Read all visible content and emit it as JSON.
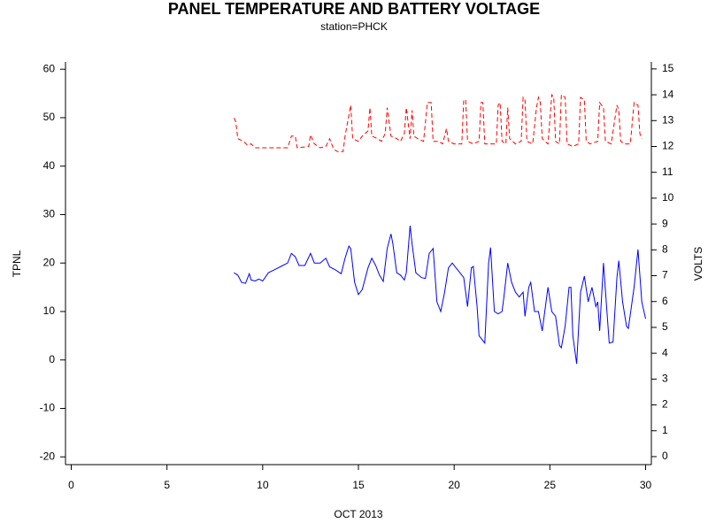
{
  "chart_data": {
    "type": "line",
    "title": "PANEL TEMPERATURE AND BATTERY VOLTAGE",
    "subtitle": "station=PHCK",
    "xlabel": "OCT 2013",
    "ylabel": "TPNL",
    "y2label": "VOLTS",
    "xlim": [
      -0.3,
      30.3
    ],
    "xticks": [
      0,
      5,
      10,
      15,
      20,
      25,
      30
    ],
    "ylim": [
      -21.6,
      61.5
    ],
    "yticks": [
      -20,
      -10,
      0,
      10,
      20,
      30,
      40,
      50,
      60
    ],
    "y2lim": [
      -0.31,
      15.27
    ],
    "y2ticks": [
      0,
      1,
      2,
      3,
      4,
      5,
      6,
      7,
      8,
      9,
      10,
      11,
      12,
      13,
      14,
      15
    ],
    "series": [
      {
        "name": "TPNL",
        "color": "#0000ff",
        "line_style": "solid",
        "x": [
          8.5,
          8.7,
          8.9,
          9.1,
          9.3,
          9.4,
          9.6,
          9.8,
          10.0,
          10.3,
          10.6,
          11.0,
          11.3,
          11.5,
          11.7,
          11.9,
          12.2,
          12.5,
          12.7,
          13.0,
          13.3,
          13.5,
          13.8,
          14.1,
          14.3,
          14.5,
          14.6,
          14.8,
          15.0,
          15.2,
          15.5,
          15.7,
          15.9,
          16.1,
          16.3,
          16.5,
          16.7,
          16.8,
          17.0,
          17.2,
          17.4,
          17.5,
          17.7,
          17.8,
          18.0,
          18.3,
          18.5,
          18.7,
          18.9,
          19.1,
          19.3,
          19.5,
          19.7,
          19.9,
          20.1,
          20.3,
          20.5,
          20.7,
          20.9,
          21.0,
          21.2,
          21.3,
          21.6,
          21.8,
          21.9,
          22.1,
          22.3,
          22.5,
          22.6,
          22.8,
          23.0,
          23.2,
          23.4,
          23.6,
          23.7,
          23.9,
          24.0,
          24.2,
          24.4,
          24.6,
          24.8,
          24.9,
          25.1,
          25.3,
          25.5,
          25.6,
          25.8,
          26.0,
          26.1,
          26.2,
          26.4,
          26.6,
          26.8,
          27.0,
          27.2,
          27.4,
          27.5,
          27.6,
          27.8,
          28.0,
          28.1,
          28.3,
          28.5,
          28.6,
          28.8,
          29.0,
          29.1,
          29.4,
          29.6,
          29.8,
          30.0
        ],
        "values": [
          18,
          17.5,
          16,
          15.8,
          17.8,
          16.5,
          16.3,
          16.7,
          16.3,
          18,
          18.6,
          19.4,
          20,
          22,
          21.3,
          19.5,
          19.5,
          22,
          20,
          20,
          21,
          19.2,
          18.6,
          17.8,
          21,
          23.5,
          23,
          16,
          13.5,
          14.5,
          19,
          21,
          19.5,
          17.5,
          16.2,
          23,
          26,
          24,
          18,
          17.5,
          16.5,
          18,
          27.7,
          24,
          18,
          17,
          16.8,
          22,
          23,
          12,
          10,
          14,
          19,
          20,
          19,
          18,
          17,
          11,
          19,
          19.3,
          11,
          5,
          3.5,
          20,
          23.2,
          10,
          9.5,
          10,
          13,
          20,
          16,
          14,
          13,
          14,
          9,
          15,
          16,
          10,
          10,
          6,
          12,
          15,
          10,
          9,
          3,
          2.5,
          7,
          15,
          15,
          5,
          -0.8,
          14,
          17.3,
          12,
          15,
          11,
          12,
          6,
          20,
          9,
          3.5,
          3.7,
          17,
          20.5,
          12,
          7,
          6.5,
          15,
          22.8,
          12,
          8.5
        ]
      },
      {
        "name": "VOLTS",
        "color": "#ff0000",
        "line_style": "dashed",
        "axis": "y2",
        "x": [
          8.5,
          8.6,
          8.7,
          9.0,
          9.2,
          9.4,
          9.6,
          11.3,
          11.5,
          11.7,
          11.8,
          12.4,
          12.5,
          12.7,
          13.0,
          13.3,
          13.5,
          13.7,
          13.9,
          14.2,
          14.3,
          14.5,
          14.6,
          14.7,
          15.0,
          15.2,
          15.5,
          15.6,
          15.7,
          16.0,
          16.2,
          16.4,
          16.5,
          16.7,
          17.0,
          17.2,
          17.4,
          17.5,
          17.7,
          17.8,
          17.9,
          18.1,
          18.4,
          18.6,
          18.8,
          18.9,
          19.2,
          19.4,
          19.6,
          19.7,
          20.0,
          20.4,
          20.5,
          20.6,
          20.7,
          21.0,
          21.3,
          21.4,
          21.5,
          21.6,
          21.9,
          22.2,
          22.3,
          22.4,
          22.5,
          22.7,
          22.8,
          22.9,
          23.2,
          23.5,
          23.6,
          23.7,
          23.8,
          24.1,
          24.3,
          24.4,
          24.5,
          24.6,
          24.9,
          25.1,
          25.2,
          25.3,
          25.5,
          25.6,
          25.8,
          25.9,
          26.2,
          26.5,
          26.6,
          26.8,
          26.9,
          27.1,
          27.5,
          27.6,
          27.8,
          27.9,
          28.2,
          28.5,
          28.6,
          28.7,
          28.9,
          29.2,
          29.4,
          29.6,
          29.7,
          29.8
        ],
        "values": [
          13.1,
          12.95,
          12.3,
          12.2,
          12.05,
          12.1,
          11.95,
          11.95,
          12.4,
          12.4,
          11.95,
          12,
          12.45,
          12.1,
          11.95,
          12,
          12.3,
          11.9,
          11.8,
          11.8,
          12.4,
          13.2,
          13.6,
          12.3,
          12.2,
          12.4,
          12.6,
          13.5,
          12.4,
          12.3,
          12.2,
          12.5,
          13.5,
          12.4,
          12.3,
          12.2,
          12.5,
          13.5,
          12.3,
          13.4,
          12.4,
          12.3,
          12.2,
          13.7,
          13.7,
          12.2,
          12.2,
          12.1,
          12.7,
          12.2,
          12.1,
          12.1,
          13.8,
          13.8,
          12.2,
          12.1,
          12.2,
          13.7,
          13.7,
          12.1,
          12.1,
          12.1,
          13.6,
          13.7,
          12.2,
          12.1,
          13.5,
          12.3,
          12.1,
          12.2,
          13.9,
          13.8,
          12.2,
          12.1,
          13.5,
          13.9,
          13.7,
          12.3,
          12.1,
          14,
          13.9,
          12.2,
          12.1,
          14,
          13.9,
          12.1,
          12.0,
          12.1,
          13.9,
          13.8,
          12.2,
          12.1,
          12.2,
          13.7,
          13.5,
          12.2,
          12.1,
          13.6,
          13.4,
          12.2,
          12.1,
          12.1,
          13.7,
          13.6,
          12.5,
          12.3
        ]
      }
    ]
  }
}
